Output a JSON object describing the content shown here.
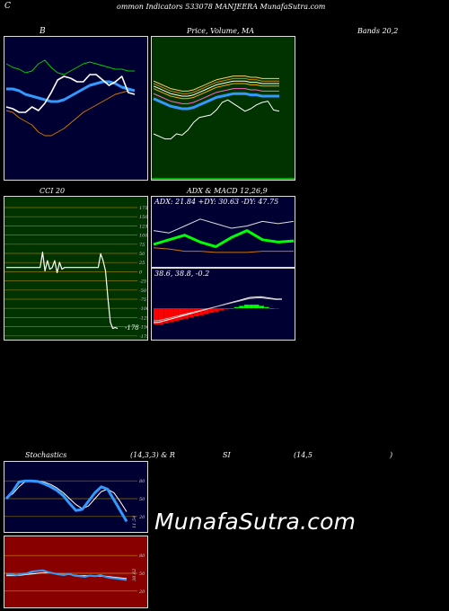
{
  "header": {
    "prefix": "C",
    "text": "ommon  Indicators 533078  MANJEERA MunafaSutra.com"
  },
  "labels": {
    "bb_title": "B",
    "price_title": "Price,  Volume,  MA",
    "bands_title": "Bands 20,2",
    "cci_title": "CCI 20",
    "adx_macd_title": "ADX  & MACD 12,26,9",
    "adx_readout": "ADX: 21.84  +DY: 30.63 -DY: 47.75",
    "macd_readout": "38.6,  38.8,  -0.2",
    "stoch_title": "Stochastics",
    "stoch_params": "(14,3,3) & R",
    "rsi_si": "SI",
    "rsi_params": "(14,5",
    "rsi_close": ")",
    "cci_value_label": "-178",
    "stoch_value_label": "11.54",
    "rsi_value_label": "38.62"
  },
  "watermark": "MunafaSutra.com",
  "colors": {
    "bb_bg": "#000033",
    "price_bg": "#003300",
    "cci_bg": "#003300",
    "adx_bg": "#000033",
    "stoch_bg": "#000033",
    "rsi_bg": "#880000",
    "cci_grid": "#8B7500",
    "adx_green": "#00ff00",
    "blue": "#3399ff",
    "orange": "#cc7700"
  },
  "chart_data": [
    {
      "type": "line",
      "panel": "bollinger",
      "series": [
        {
          "role": "upper",
          "values": [
            60,
            58,
            57,
            55,
            56,
            60,
            62,
            58,
            55,
            54,
            56,
            58,
            60,
            61,
            60,
            59,
            58,
            57,
            57,
            56,
            56
          ]
        },
        {
          "role": "middle",
          "values": [
            46,
            46,
            45,
            43,
            42,
            41,
            40,
            39,
            39,
            40,
            42,
            44,
            46,
            48,
            49,
            50,
            50,
            49,
            47,
            46,
            45
          ]
        },
        {
          "role": "lower",
          "values": [
            34,
            33,
            30,
            28,
            26,
            22,
            20,
            20,
            22,
            24,
            27,
            30,
            33,
            35,
            37,
            39,
            41,
            43,
            44,
            45,
            45
          ]
        },
        {
          "role": "close",
          "values": [
            36,
            35,
            33,
            33,
            36,
            34,
            38,
            44,
            51,
            53,
            52,
            50,
            50,
            54,
            54,
            51,
            48,
            50,
            53,
            44,
            43
          ]
        }
      ]
    },
    {
      "type": "line",
      "panel": "price",
      "series": [
        {
          "role": "close",
          "values": [
            30,
            28,
            26,
            26,
            30,
            29,
            33,
            39,
            43,
            44,
            45,
            49,
            55,
            57,
            54,
            51,
            48,
            50,
            53,
            55,
            56,
            49,
            48
          ]
        },
        {
          "role": "ma",
          "values": [
            48,
            46,
            44,
            42,
            41,
            40,
            40,
            41,
            43,
            45,
            47,
            49,
            50,
            51,
            52,
            52,
            52,
            51,
            51,
            50,
            50,
            50,
            50
          ]
        }
      ]
    },
    {
      "type": "line",
      "panel": "cci",
      "ticks": [
        175,
        150,
        125,
        100,
        75,
        50,
        25,
        0,
        -25,
        -50,
        -75,
        -100,
        -125,
        -150,
        -175
      ],
      "values": [
        0,
        0,
        0,
        0,
        0,
        0,
        0,
        0,
        0,
        0,
        0,
        0,
        0,
        0,
        0,
        45,
        -10,
        20,
        -5,
        0,
        20,
        -15,
        15,
        -5,
        0,
        0,
        0,
        0,
        0,
        0,
        0,
        0,
        0,
        0,
        0,
        0,
        0,
        0,
        0,
        40,
        20,
        -10,
        -90,
        -160,
        -178,
        -175,
        -178
      ]
    },
    {
      "type": "line",
      "panel": "adx",
      "series": [
        {
          "name": "ADX",
          "values": [
            25,
            24,
            22,
            22,
            21,
            21,
            21,
            22,
            22,
            22
          ]
        },
        {
          "name": "+DY",
          "values": [
            28,
            32,
            36,
            30,
            26,
            34,
            40,
            32,
            30,
            31
          ]
        },
        {
          "name": "-DY",
          "values": [
            40,
            38,
            44,
            50,
            46,
            42,
            44,
            48,
            46,
            48
          ]
        }
      ]
    },
    {
      "type": "bar",
      "panel": "macd",
      "values": [
        -14,
        -14,
        -13,
        -12,
        -11,
        -10,
        -9,
        -8,
        -7,
        -6,
        -5,
        -4,
        -3,
        -2,
        -1,
        0,
        1,
        2,
        3,
        3,
        3,
        2,
        1,
        0,
        -0.2
      ]
    },
    {
      "type": "line",
      "panel": "stochastics",
      "ticks": [
        80,
        50,
        20
      ],
      "series": [
        {
          "role": "k",
          "values": [
            50,
            62,
            78,
            80,
            80,
            79,
            75,
            70,
            64,
            55,
            42,
            30,
            32,
            46,
            60,
            70,
            66,
            48,
            30,
            11.54
          ]
        },
        {
          "role": "d",
          "values": [
            52,
            58,
            70,
            79,
            80,
            80,
            78,
            74,
            68,
            60,
            50,
            40,
            33,
            38,
            50,
            62,
            66,
            60,
            45,
            28
          ]
        }
      ]
    },
    {
      "type": "line",
      "panel": "rsi",
      "ticks": [
        80,
        50,
        20
      ],
      "series": [
        {
          "role": "rsi",
          "values": [
            48,
            48,
            47,
            49,
            50,
            53,
            54,
            55,
            52,
            50,
            48,
            47,
            49,
            46,
            45,
            44,
            46,
            45,
            47,
            44,
            42,
            41,
            40,
            38.62
          ]
        },
        {
          "role": "signal",
          "values": [
            46,
            46,
            46,
            47,
            48,
            49,
            50,
            51,
            51,
            50,
            49,
            48,
            48,
            47,
            46,
            46,
            46,
            45,
            45,
            45,
            44,
            43,
            42,
            41
          ]
        }
      ]
    }
  ]
}
